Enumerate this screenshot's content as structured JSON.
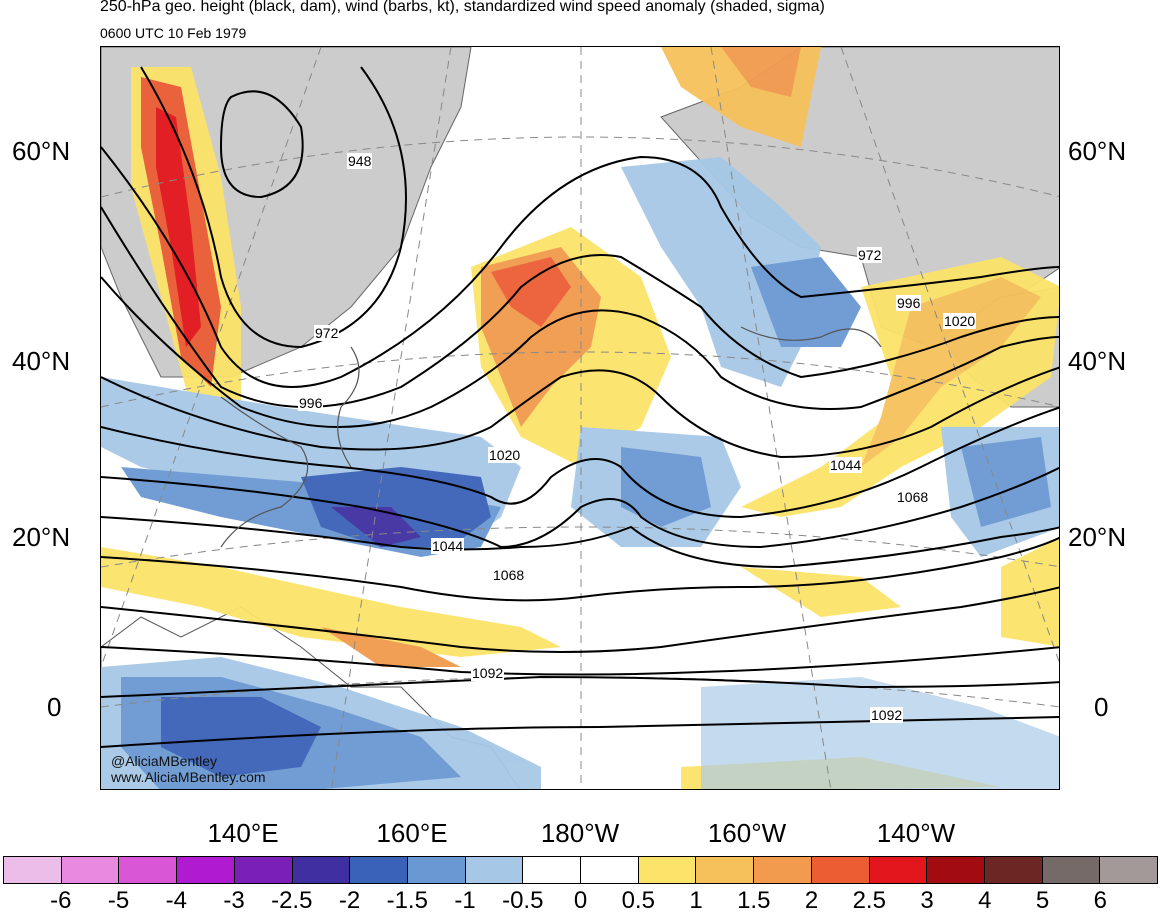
{
  "title": "250-hPa geo. height (black, dam), wind (barbs, kt), standardized wind speed anomaly (shaded, sigma)",
  "subtitle": "0600 UTC 10 Feb 1979",
  "lat_labels": [
    "60°N",
    "40°N",
    "20°N",
    "0"
  ],
  "lon_labels": [
    "140°E",
    "160°E",
    "180°W",
    "160°W",
    "140°W"
  ],
  "contour_labels": [
    "948",
    "972",
    "972",
    "996",
    "996",
    "1020",
    "1020",
    "1044",
    "1044",
    "1068",
    "1068",
    "1092",
    "1092"
  ],
  "credits": {
    "handle": "@AliciaMBentley",
    "site": "www.AliciaMBentley.com"
  },
  "colorbar": {
    "ticks": [
      "-6",
      "-5",
      "-4",
      "-3",
      "-2.5",
      "-2",
      "-1.5",
      "-1",
      "-0.5",
      "0",
      "0.5",
      "1",
      "1.5",
      "2",
      "2.5",
      "3",
      "4",
      "5",
      "6"
    ],
    "colors": [
      "#ecbde8",
      "#e88ae0",
      "#d957d6",
      "#b01bd2",
      "#7a20b8",
      "#3f2fa0",
      "#3a62b8",
      "#6a98d2",
      "#a6c8e6",
      "#ffffff",
      "#ffffff",
      "#fce36a",
      "#f6c15a",
      "#f29a4e",
      "#ec5d34",
      "#e4161d",
      "#a20b10",
      "#6c2724",
      "#756a68",
      "#a39998"
    ]
  },
  "colors": {
    "land": "#cccccc",
    "contour": "#000000",
    "coast": "#555555"
  }
}
